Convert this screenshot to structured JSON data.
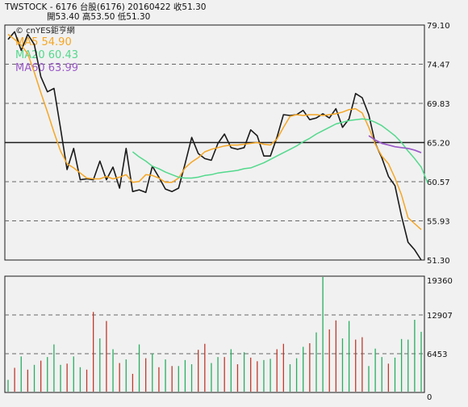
{
  "header": {
    "line1": "TWSTOCK  - 6176  台股(6176) 20160422   收51.30",
    "line2": "開53.40    高53.50    低51.30"
  },
  "chart_data": [
    {
      "type": "line",
      "title": "TWSTOCK  - 6176  台股(6176) 20160422   收51.30",
      "watermark": "© cnYES鉅亨網",
      "ylim": [
        51.3,
        79.1
      ],
      "y_ticks": [
        "79.10",
        "74.47",
        "69.83",
        "65.20",
        "60.57",
        "55.93",
        "51.30"
      ],
      "reference_line": 65.2,
      "colors": {
        "price": "#1a1a1a",
        "ma5": "#f5a623",
        "ma20": "#52d98c",
        "ma60": "#9b59c9",
        "grid": "#666666"
      },
      "legend": [
        {
          "label": "MA5 54.90",
          "color": "#f5a623"
        },
        {
          "label": "MA20 60.43",
          "color": "#52d98c"
        },
        {
          "label": "MA60 63.99",
          "color": "#9b59c9"
        }
      ],
      "n_days": 64,
      "series": [
        {
          "name": "收盤價",
          "start": 0,
          "values": [
            77.4,
            78.3,
            76.1,
            78.0,
            76.8,
            73.0,
            71.2,
            71.6,
            66.9,
            62.0,
            64.5,
            60.8,
            60.9,
            60.8,
            63.0,
            60.8,
            62.3,
            59.8,
            64.5,
            59.4,
            59.6,
            59.3,
            62.4,
            61.1,
            59.7,
            59.4,
            59.8,
            62.7,
            65.8,
            63.9,
            63.3,
            63.1,
            65.1,
            66.2,
            64.6,
            64.4,
            64.6,
            66.7,
            66.0,
            63.6,
            63.6,
            65.8,
            68.5,
            68.4,
            68.5,
            69.0,
            67.9,
            68.1,
            68.6,
            68.1,
            69.2,
            67.0,
            68.0,
            71.0,
            70.5,
            68.5,
            65.1,
            63.4,
            61.2,
            60.1,
            56.5,
            53.4,
            52.5,
            51.3
          ]
        },
        {
          "name": "MA5",
          "start": 0,
          "values": [
            78.0,
            77.4,
            76.7,
            75.7,
            73.5,
            71.1,
            68.8,
            66.4,
            64.2,
            62.7,
            62.2,
            61.6,
            61.0,
            60.9,
            60.9,
            61.2,
            60.9,
            61.1,
            61.4,
            60.5,
            60.6,
            61.4,
            61.3,
            61.0,
            60.5,
            60.5,
            61.0,
            62.2,
            62.9,
            63.4,
            64.1,
            64.4,
            64.6,
            64.8,
            64.9,
            64.9,
            65.0,
            65.1,
            65.2,
            65.0,
            64.9,
            65.6,
            67.0,
            68.3,
            68.5,
            68.4,
            68.5,
            68.5,
            68.4,
            68.5,
            68.6,
            68.8,
            69.1,
            69.2,
            68.7,
            67.0,
            65.0,
            63.6,
            62.7,
            61.0,
            59.0,
            56.3,
            55.6,
            54.9
          ]
        },
        {
          "name": "MA20",
          "start": 19,
          "values": [
            64.1,
            63.5,
            63.0,
            62.4,
            62.1,
            61.7,
            61.4,
            61.1,
            61.0,
            61.0,
            61.1,
            61.3,
            61.4,
            61.6,
            61.7,
            61.8,
            61.9,
            62.1,
            62.2,
            62.5,
            62.8,
            63.2,
            63.6,
            64.0,
            64.4,
            64.8,
            65.3,
            65.7,
            66.2,
            66.6,
            67.0,
            67.4,
            67.6,
            67.8,
            67.9,
            68.0,
            67.9,
            67.6,
            67.2,
            66.6,
            66.0,
            65.2,
            64.2,
            63.3,
            62.3,
            60.4
          ]
        },
        {
          "name": "MA60",
          "start": 55,
          "values": [
            66.0,
            65.5,
            65.1,
            64.9,
            64.7,
            64.6,
            64.5,
            64.3,
            64.0
          ]
        }
      ]
    },
    {
      "type": "bar",
      "title": "",
      "ylim": [
        0,
        19360
      ],
      "y_ticks": [
        "19360",
        "12907",
        "6453",
        "0"
      ],
      "up_color": "#c0392b",
      "down_color": "#27ae60",
      "values": [
        2100,
        4100,
        6000,
        3800,
        4600,
        5300,
        5900,
        8000,
        4600,
        4800,
        6000,
        4200,
        3800,
        13400,
        9000,
        11900,
        7200,
        4900,
        5500,
        3100,
        8000,
        5700,
        6500,
        4200,
        5500,
        4400,
        4400,
        5400,
        4700,
        7100,
        8100,
        4900,
        5900,
        5900,
        7200,
        4700,
        6700,
        5800,
        5200,
        5400,
        5600,
        7200,
        8100,
        4700,
        5700,
        7600,
        8200,
        10000,
        19700,
        10500,
        12000,
        9000,
        11900,
        8800,
        9200,
        4400,
        7300,
        5900,
        4800,
        5800,
        8900,
        8800,
        12100,
        10100
      ],
      "directions": [
        "d",
        "u",
        "d",
        "u",
        "d",
        "u",
        "d",
        "d",
        "d",
        "u",
        "d",
        "d",
        "u",
        "u",
        "d",
        "u",
        "d",
        "u",
        "d",
        "u",
        "d",
        "u",
        "d",
        "u",
        "d",
        "u",
        "d",
        "d",
        "d",
        "u",
        "u",
        "d",
        "d",
        "u",
        "d",
        "u",
        "d",
        "u",
        "u",
        "d",
        "d",
        "u",
        "u",
        "d",
        "d",
        "d",
        "u",
        "d",
        "d",
        "u",
        "u",
        "d",
        "d",
        "u",
        "u",
        "d",
        "d",
        "d",
        "u",
        "d",
        "d",
        "d",
        "d",
        "d"
      ]
    }
  ]
}
